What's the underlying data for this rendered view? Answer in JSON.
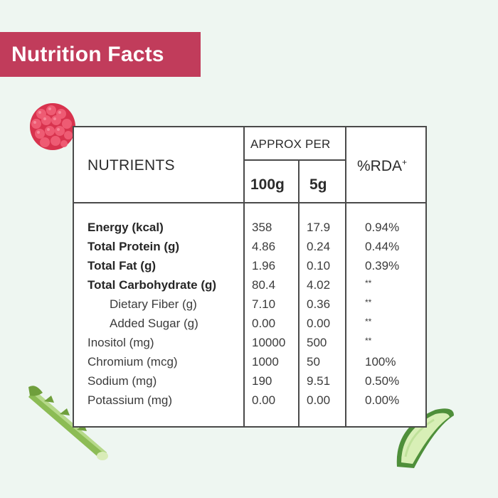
{
  "banner": {
    "title": "Nutrition Facts"
  },
  "table": {
    "header": {
      "nutrients": "NUTRIENTS",
      "approx_per": "APPROX PER",
      "col_100g": "100g",
      "col_5g": "5g",
      "rda": "%RDA",
      "rda_mark": "+"
    },
    "rows": [
      {
        "name": "Energy (kcal)",
        "per100": "358",
        "per5": "17.9",
        "rda": "0.94%"
      },
      {
        "name": "Total Protein (g)",
        "per100": "4.86",
        "per5": "0.24",
        "rda": "0.44%"
      },
      {
        "name": "Total Fat (g)",
        "per100": "1.96",
        "per5": "0.10",
        "rda": "0.39%"
      },
      {
        "name": "Total Carbohydrate (g)",
        "per100": "80.4",
        "per5": "4.02",
        "rda": "**"
      },
      {
        "name": "Dietary Fiber (g)",
        "per100": "7.10",
        "per5": "0.36",
        "rda": "**"
      },
      {
        "name": "Added Sugar (g)",
        "per100": "0.00",
        "per5": "0.00",
        "rda": "**"
      },
      {
        "name": "Inositol (mg)",
        "per100": "10000",
        "per5": "500",
        "rda": "**"
      },
      {
        "name": "Chromium (mcg)",
        "per100": "1000",
        "per5": "50",
        "rda": "100%"
      },
      {
        "name": "Sodium (mg)",
        "per100": "190",
        "per5": "9.51",
        "rda": "0.50%"
      },
      {
        "name": "Potassium (mg)",
        "per100": "0.00",
        "per5": "0.00",
        "rda": "0.00%"
      }
    ]
  },
  "decor": {
    "icons": [
      "raspberry-icon",
      "asparagus-icon",
      "aloe-vera-icon"
    ]
  },
  "colors": {
    "banner": "#c13c5b",
    "background": "#eef6f1",
    "border": "#4a4a4a"
  }
}
